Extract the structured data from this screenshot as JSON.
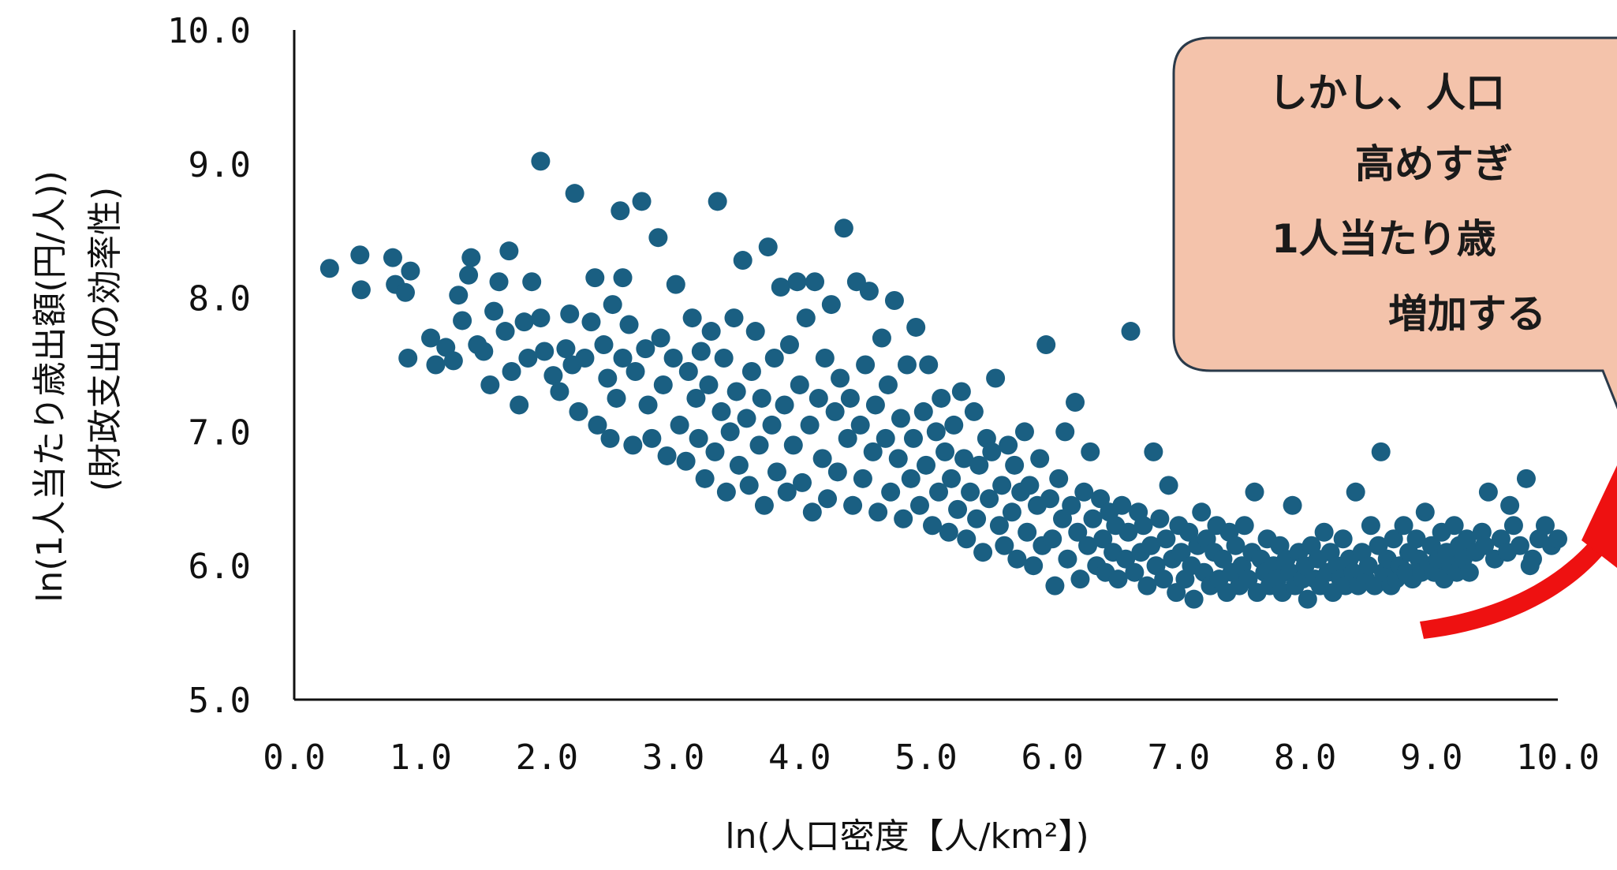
{
  "colors": {
    "point": "#1a5f82",
    "callout_fill": "#f4c3ab",
    "callout_stroke": "#2a3a4a",
    "arrow": "#ee1111",
    "axis": "#111111"
  },
  "chart_data": {
    "type": "scatter",
    "xlabel": "ln(人口密度【人/km²】)",
    "ylabel_line1": "ln(1人当たり歳出額(円/人))",
    "ylabel_line2": "(財政支出の効率性)",
    "xlim": [
      0,
      10
    ],
    "ylim": [
      5,
      10
    ],
    "x_ticks": [
      "0.0",
      "1.0",
      "2.0",
      "3.0",
      "4.0",
      "5.0",
      "6.0",
      "7.0",
      "8.0",
      "9.0",
      "10.0"
    ],
    "y_ticks": [
      "5.0",
      "6.0",
      "7.0",
      "8.0",
      "9.0",
      "10.0"
    ],
    "grid": false,
    "legend": "none",
    "points": [
      [
        0.28,
        8.22
      ],
      [
        0.52,
        8.32
      ],
      [
        0.53,
        8.06
      ],
      [
        0.78,
        8.3
      ],
      [
        0.8,
        8.1
      ],
      [
        0.88,
        8.04
      ],
      [
        0.92,
        8.2
      ],
      [
        0.9,
        7.55
      ],
      [
        1.08,
        7.7
      ],
      [
        1.12,
        7.5
      ],
      [
        1.2,
        7.63
      ],
      [
        1.26,
        7.53
      ],
      [
        1.3,
        8.02
      ],
      [
        1.33,
        7.83
      ],
      [
        1.38,
        8.17
      ],
      [
        1.4,
        8.3
      ],
      [
        1.45,
        7.65
      ],
      [
        1.5,
        7.6
      ],
      [
        1.55,
        7.35
      ],
      [
        1.58,
        7.9
      ],
      [
        1.62,
        8.12
      ],
      [
        1.67,
        7.75
      ],
      [
        1.7,
        8.35
      ],
      [
        1.72,
        7.45
      ],
      [
        1.78,
        7.2
      ],
      [
        1.82,
        7.82
      ],
      [
        1.85,
        7.55
      ],
      [
        1.88,
        8.12
      ],
      [
        1.95,
        7.85
      ],
      [
        1.98,
        7.6
      ],
      [
        1.95,
        9.02
      ],
      [
        2.05,
        7.42
      ],
      [
        2.1,
        7.3
      ],
      [
        2.15,
        7.62
      ],
      [
        2.18,
        7.88
      ],
      [
        2.2,
        7.5
      ],
      [
        2.22,
        8.78
      ],
      [
        2.25,
        7.15
      ],
      [
        2.3,
        7.55
      ],
      [
        2.35,
        7.82
      ],
      [
        2.38,
        8.15
      ],
      [
        2.4,
        7.05
      ],
      [
        2.45,
        7.65
      ],
      [
        2.48,
        7.4
      ],
      [
        2.5,
        6.95
      ],
      [
        2.52,
        7.95
      ],
      [
        2.55,
        7.25
      ],
      [
        2.58,
        8.65
      ],
      [
        2.6,
        8.15
      ],
      [
        2.6,
        7.55
      ],
      [
        2.65,
        7.8
      ],
      [
        2.68,
        6.9
      ],
      [
        2.7,
        7.45
      ],
      [
        2.75,
        8.72
      ],
      [
        2.78,
        7.62
      ],
      [
        2.8,
        7.2
      ],
      [
        2.83,
        6.95
      ],
      [
        2.88,
        8.45
      ],
      [
        2.9,
        7.7
      ],
      [
        2.92,
        7.35
      ],
      [
        2.95,
        6.82
      ],
      [
        3.0,
        7.55
      ],
      [
        3.02,
        8.1
      ],
      [
        3.05,
        7.05
      ],
      [
        3.1,
        6.78
      ],
      [
        3.12,
        7.45
      ],
      [
        3.15,
        7.85
      ],
      [
        3.18,
        7.25
      ],
      [
        3.2,
        6.95
      ],
      [
        3.22,
        7.6
      ],
      [
        3.25,
        6.65
      ],
      [
        3.28,
        7.35
      ],
      [
        3.3,
        7.75
      ],
      [
        3.33,
        6.85
      ],
      [
        3.35,
        8.72
      ],
      [
        3.38,
        7.15
      ],
      [
        3.4,
        7.55
      ],
      [
        3.42,
        6.55
      ],
      [
        3.45,
        7.0
      ],
      [
        3.48,
        7.85
      ],
      [
        3.5,
        7.3
      ],
      [
        3.52,
        6.75
      ],
      [
        3.55,
        8.28
      ],
      [
        3.58,
        7.1
      ],
      [
        3.6,
        6.6
      ],
      [
        3.62,
        7.45
      ],
      [
        3.65,
        7.75
      ],
      [
        3.68,
        6.9
      ],
      [
        3.7,
        7.25
      ],
      [
        3.72,
        6.45
      ],
      [
        3.75,
        8.38
      ],
      [
        3.78,
        7.05
      ],
      [
        3.8,
        7.55
      ],
      [
        3.82,
        6.7
      ],
      [
        3.85,
        8.08
      ],
      [
        3.88,
        7.2
      ],
      [
        3.9,
        6.55
      ],
      [
        3.92,
        7.65
      ],
      [
        3.95,
        6.9
      ],
      [
        3.98,
        8.12
      ],
      [
        4.0,
        7.35
      ],
      [
        4.02,
        6.62
      ],
      [
        4.05,
        7.85
      ],
      [
        4.08,
        7.05
      ],
      [
        4.1,
        6.4
      ],
      [
        4.12,
        8.12
      ],
      [
        4.15,
        7.25
      ],
      [
        4.18,
        6.8
      ],
      [
        4.2,
        7.55
      ],
      [
        4.22,
        6.5
      ],
      [
        4.25,
        7.95
      ],
      [
        4.28,
        7.15
      ],
      [
        4.3,
        6.7
      ],
      [
        4.32,
        7.4
      ],
      [
        4.35,
        8.52
      ],
      [
        4.38,
        6.95
      ],
      [
        4.4,
        7.25
      ],
      [
        4.42,
        6.45
      ],
      [
        4.45,
        8.12
      ],
      [
        4.48,
        7.05
      ],
      [
        4.5,
        6.65
      ],
      [
        4.52,
        7.5
      ],
      [
        4.55,
        8.05
      ],
      [
        4.58,
        6.85
      ],
      [
        4.6,
        7.2
      ],
      [
        4.62,
        6.4
      ],
      [
        4.65,
        7.7
      ],
      [
        4.68,
        6.95
      ],
      [
        4.7,
        7.35
      ],
      [
        4.72,
        6.55
      ],
      [
        4.75,
        7.98
      ],
      [
        4.78,
        6.8
      ],
      [
        4.8,
        7.1
      ],
      [
        4.82,
        6.35
      ],
      [
        4.85,
        7.5
      ],
      [
        4.88,
        6.65
      ],
      [
        4.9,
        6.95
      ],
      [
        4.92,
        7.78
      ],
      [
        4.95,
        6.45
      ],
      [
        4.98,
        7.15
      ],
      [
        5.0,
        6.75
      ],
      [
        5.02,
        7.5
      ],
      [
        5.05,
        6.3
      ],
      [
        5.08,
        7.0
      ],
      [
        5.1,
        6.55
      ],
      [
        5.12,
        7.25
      ],
      [
        5.15,
        6.85
      ],
      [
        5.18,
        6.25
      ],
      [
        5.2,
        6.65
      ],
      [
        5.22,
        7.05
      ],
      [
        5.25,
        6.42
      ],
      [
        5.28,
        7.3
      ],
      [
        5.3,
        6.8
      ],
      [
        5.32,
        6.2
      ],
      [
        5.35,
        6.55
      ],
      [
        5.38,
        7.15
      ],
      [
        5.4,
        6.35
      ],
      [
        5.42,
        6.75
      ],
      [
        5.45,
        6.1
      ],
      [
        5.48,
        6.95
      ],
      [
        5.5,
        6.5
      ],
      [
        5.52,
        6.85
      ],
      [
        5.55,
        7.4
      ],
      [
        5.58,
        6.3
      ],
      [
        5.6,
        6.6
      ],
      [
        5.62,
        6.15
      ],
      [
        5.65,
        6.9
      ],
      [
        5.68,
        6.4
      ],
      [
        5.7,
        6.75
      ],
      [
        5.72,
        6.05
      ],
      [
        5.75,
        6.55
      ],
      [
        5.78,
        7.0
      ],
      [
        5.8,
        6.25
      ],
      [
        5.82,
        6.6
      ],
      [
        5.85,
        6.0
      ],
      [
        5.88,
        6.45
      ],
      [
        5.9,
        6.8
      ],
      [
        5.92,
        6.15
      ],
      [
        5.95,
        7.65
      ],
      [
        5.98,
        6.5
      ],
      [
        6.0,
        6.2
      ],
      [
        6.02,
        5.85
      ],
      [
        6.05,
        6.65
      ],
      [
        6.08,
        6.35
      ],
      [
        6.1,
        7.0
      ],
      [
        6.12,
        6.05
      ],
      [
        6.15,
        6.45
      ],
      [
        6.18,
        7.22
      ],
      [
        6.2,
        6.25
      ],
      [
        6.22,
        5.9
      ],
      [
        6.25,
        6.55
      ],
      [
        6.28,
        6.15
      ],
      [
        6.3,
        6.85
      ],
      [
        6.32,
        6.35
      ],
      [
        6.35,
        6.0
      ],
      [
        6.38,
        6.5
      ],
      [
        6.4,
        6.2
      ],
      [
        6.42,
        5.95
      ],
      [
        6.45,
        6.4
      ],
      [
        6.48,
        6.1
      ],
      [
        6.5,
        6.3
      ],
      [
        6.52,
        5.9
      ],
      [
        6.55,
        6.45
      ],
      [
        6.58,
        6.05
      ],
      [
        6.6,
        6.25
      ],
      [
        6.62,
        7.75
      ],
      [
        6.65,
        5.95
      ],
      [
        6.68,
        6.4
      ],
      [
        6.7,
        6.1
      ],
      [
        6.72,
        6.3
      ],
      [
        6.75,
        5.85
      ],
      [
        6.78,
        6.15
      ],
      [
        6.8,
        6.85
      ],
      [
        6.82,
        6.0
      ],
      [
        6.85,
        6.35
      ],
      [
        6.88,
        5.9
      ],
      [
        6.9,
        6.2
      ],
      [
        6.92,
        6.6
      ],
      [
        6.95,
        6.05
      ],
      [
        6.98,
        5.8
      ],
      [
        7.0,
        6.3
      ],
      [
        7.02,
        6.1
      ],
      [
        7.05,
        5.9
      ],
      [
        7.08,
        6.25
      ],
      [
        7.1,
        6.0
      ],
      [
        7.12,
        5.75
      ],
      [
        7.15,
        6.15
      ],
      [
        7.18,
        6.4
      ],
      [
        7.2,
        5.95
      ],
      [
        7.22,
        6.2
      ],
      [
        7.25,
        5.85
      ],
      [
        7.28,
        6.1
      ],
      [
        7.3,
        6.3
      ],
      [
        7.32,
        5.9
      ],
      [
        7.35,
        6.05
      ],
      [
        7.38,
        5.8
      ],
      [
        7.4,
        6.25
      ],
      [
        7.42,
        5.95
      ],
      [
        7.45,
        6.15
      ],
      [
        7.48,
        5.85
      ],
      [
        7.5,
        6.0
      ],
      [
        7.52,
        6.3
      ],
      [
        7.55,
        5.9
      ],
      [
        7.58,
        6.1
      ],
      [
        7.6,
        6.55
      ],
      [
        7.62,
        5.8
      ],
      [
        7.65,
        6.05
      ],
      [
        7.68,
        5.95
      ],
      [
        7.7,
        6.2
      ],
      [
        7.72,
        5.85
      ],
      [
        7.75,
        6.0
      ],
      [
        7.78,
        5.9
      ],
      [
        7.8,
        6.15
      ],
      [
        7.82,
        5.8
      ],
      [
        7.85,
        6.05
      ],
      [
        7.88,
        5.95
      ],
      [
        7.9,
        6.45
      ],
      [
        7.92,
        5.85
      ],
      [
        7.95,
        6.1
      ],
      [
        7.98,
        5.9
      ],
      [
        8.0,
        6.0
      ],
      [
        8.02,
        5.75
      ],
      [
        8.05,
        6.15
      ],
      [
        8.08,
        5.9
      ],
      [
        8.1,
        6.05
      ],
      [
        8.12,
        5.85
      ],
      [
        8.15,
        6.25
      ],
      [
        8.18,
        5.95
      ],
      [
        8.2,
        6.1
      ],
      [
        8.22,
        5.8
      ],
      [
        8.25,
        6.0
      ],
      [
        8.28,
        5.9
      ],
      [
        8.3,
        6.2
      ],
      [
        8.32,
        5.85
      ],
      [
        8.35,
        6.05
      ],
      [
        8.38,
        5.95
      ],
      [
        8.4,
        6.55
      ],
      [
        8.42,
        5.85
      ],
      [
        8.45,
        6.1
      ],
      [
        8.48,
        5.9
      ],
      [
        8.5,
        6.0
      ],
      [
        8.52,
        6.3
      ],
      [
        8.55,
        5.85
      ],
      [
        8.58,
        6.15
      ],
      [
        8.6,
        6.85
      ],
      [
        8.62,
        5.95
      ],
      [
        8.65,
        6.05
      ],
      [
        8.68,
        5.85
      ],
      [
        8.7,
        6.2
      ],
      [
        8.72,
        5.9
      ],
      [
        8.75,
        6.0
      ],
      [
        8.78,
        6.3
      ],
      [
        8.8,
        5.95
      ],
      [
        8.82,
        6.1
      ],
      [
        8.85,
        5.9
      ],
      [
        8.88,
        6.2
      ],
      [
        8.9,
        6.05
      ],
      [
        8.92,
        5.95
      ],
      [
        8.95,
        6.4
      ],
      [
        8.98,
        6.0
      ],
      [
        9.0,
        6.15
      ],
      [
        9.02,
        5.95
      ],
      [
        9.05,
        6.05
      ],
      [
        9.08,
        6.25
      ],
      [
        9.1,
        5.9
      ],
      [
        9.12,
        6.1
      ],
      [
        9.15,
        6.0
      ],
      [
        9.18,
        6.3
      ],
      [
        9.2,
        5.95
      ],
      [
        9.22,
        6.15
      ],
      [
        9.25,
        6.05
      ],
      [
        9.28,
        6.2
      ],
      [
        9.3,
        5.95
      ],
      [
        9.35,
        6.1
      ],
      [
        9.4,
        6.25
      ],
      [
        9.45,
        6.55
      ],
      [
        9.5,
        6.05
      ],
      [
        9.55,
        6.2
      ],
      [
        9.6,
        6.1
      ],
      [
        9.65,
        6.3
      ],
      [
        9.7,
        6.15
      ],
      [
        9.75,
        6.65
      ],
      [
        9.8,
        6.05
      ],
      [
        9.85,
        6.2
      ],
      [
        9.9,
        6.3
      ],
      [
        9.95,
        6.15
      ],
      [
        10.0,
        6.2
      ],
      [
        9.78,
        6.0
      ],
      [
        9.62,
        6.45
      ],
      [
        9.42,
        6.15
      ]
    ]
  },
  "callout": {
    "lines": [
      "しかし、人口",
      "高めすぎ",
      "1人当たり歳",
      "増加する"
    ]
  }
}
